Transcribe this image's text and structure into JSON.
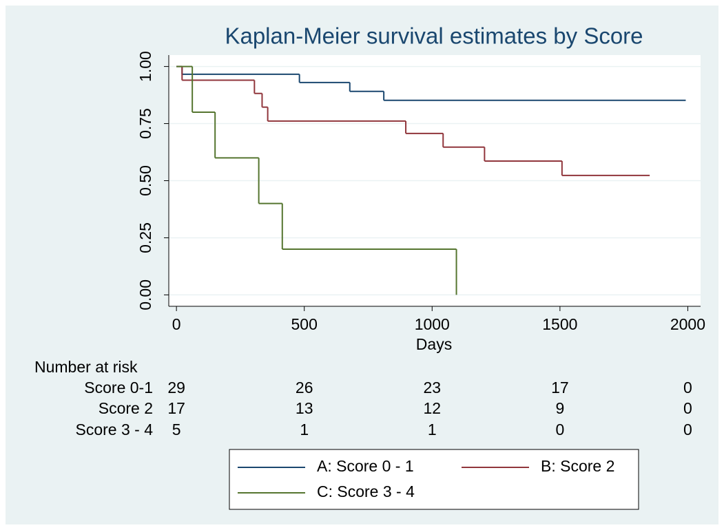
{
  "chart_data": {
    "type": "step",
    "title": "Kaplan-Meier survival estimates by Score",
    "x_label": "Days",
    "xlim": [
      -30,
      2050
    ],
    "xticks": [
      0,
      500,
      1000,
      1500,
      2000
    ],
    "ylim": [
      -0.05,
      1.05
    ],
    "yticks": [
      {
        "value": 0,
        "label": "0.00"
      },
      0.25,
      {
        "value": 0.5,
        "label": "0.50"
      },
      0.75,
      {
        "value": 1,
        "label": "1.00"
      }
    ],
    "grid": true,
    "series": [
      {
        "name": "A: Score 0 - 1",
        "color": "#1a476f",
        "x": [
          0,
          22,
          481,
          678,
          811,
          1992
        ],
        "values": [
          1,
          0.966,
          0.93,
          0.891,
          0.852,
          0.852
        ]
      },
      {
        "name": "B: Score 2",
        "color": "#90353b",
        "x": [
          0,
          22,
          305,
          335,
          357,
          897,
          1043,
          1205,
          1508,
          1851
        ],
        "values": [
          1,
          0.94,
          0.882,
          0.822,
          0.761,
          0.707,
          0.647,
          0.586,
          0.523,
          0.523
        ]
      },
      {
        "name": "C: Score 3 - 4",
        "color": "#55752f",
        "x": [
          0,
          62,
          151,
          322,
          414,
          1095
        ],
        "values": [
          1,
          0.8,
          0.6,
          0.4,
          0.2,
          0
        ]
      }
    ],
    "risk_table": {
      "title": "Number at risk",
      "rows": [
        {
          "label": "Score 0-1",
          "values": [
            29,
            26,
            23,
            17,
            0
          ]
        },
        {
          "label": "Score 2",
          "values": [
            17,
            13,
            12,
            9,
            0
          ]
        },
        {
          "label": "Score 3 - 4",
          "values": [
            5,
            1,
            1,
            0,
            0
          ]
        }
      ]
    }
  }
}
